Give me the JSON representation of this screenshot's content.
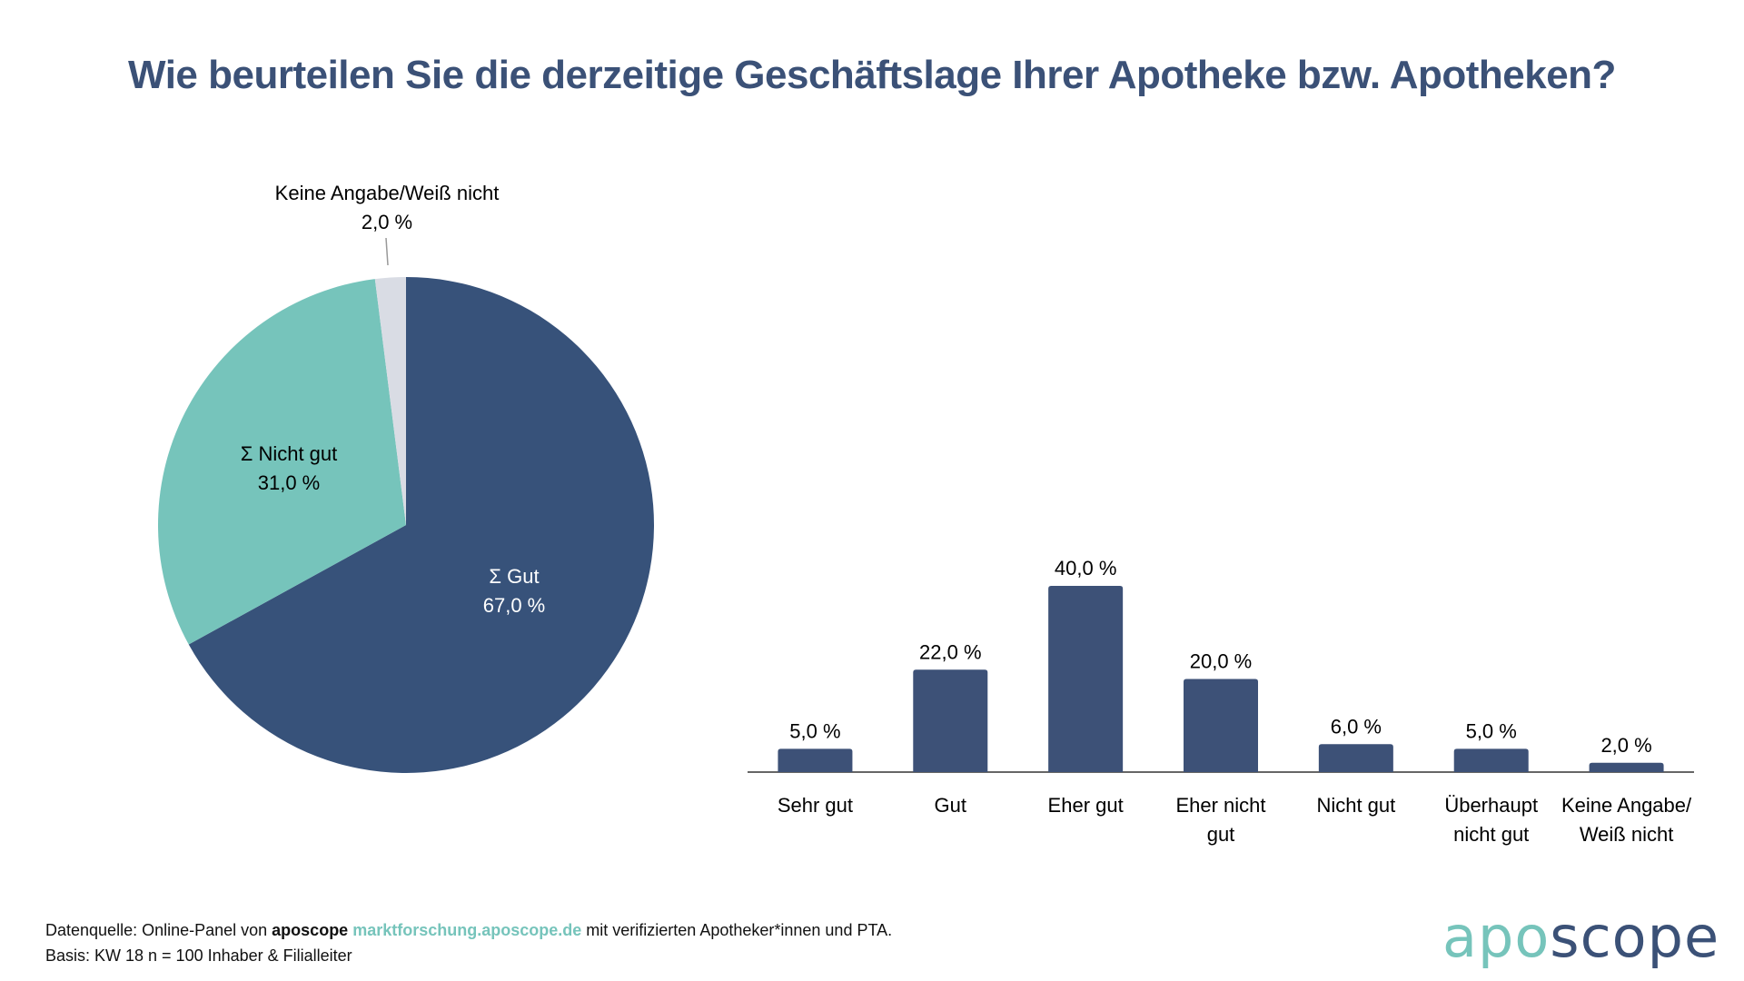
{
  "title": "Wie beurteilen Sie die derzeitige Geschäftslage Ihrer Apotheke bzw. Apotheken?",
  "colors": {
    "title": "#3b5177",
    "pie_gut": "#37527a",
    "pie_nicht_gut": "#76c4bb",
    "pie_keine_angabe": "#d9dce4",
    "bar": "#3d5177",
    "axis": "#666666",
    "logo_apo": "#76c4bb",
    "logo_scope": "#3b5177"
  },
  "chart_data": [
    {
      "type": "pie",
      "title": "",
      "slices": [
        {
          "label": "Σ Gut",
          "value": 67.0,
          "display": "67,0 %"
        },
        {
          "label": "Σ Nicht gut",
          "value": 31.0,
          "display": "31,0 %"
        },
        {
          "label": "Keine Angabe/Weiß nicht",
          "value": 2.0,
          "display": "2,0 %"
        }
      ],
      "start_angle": "12 o'clock, clockwise",
      "legend": "none (inline labels)"
    },
    {
      "type": "bar",
      "title": "",
      "categories": [
        "Sehr gut",
        "Gut",
        "Eher gut",
        "Eher nicht gut",
        "Nicht gut",
        "Überhaupt nicht gut",
        "Keine Angabe/ Weiß nicht"
      ],
      "category_lines": [
        [
          "Sehr gut"
        ],
        [
          "Gut"
        ],
        [
          "Eher gut"
        ],
        [
          "Eher nicht",
          "gut"
        ],
        [
          "Nicht gut"
        ],
        [
          "Überhaupt",
          "nicht gut"
        ],
        [
          "Keine Angabe/",
          "Weiß nicht"
        ]
      ],
      "values": [
        5.0,
        22.0,
        40.0,
        20.0,
        6.0,
        5.0,
        2.0
      ],
      "value_labels": [
        "5,0 %",
        "22,0 %",
        "40,0 %",
        "20,0 %",
        "6,0 %",
        "5,0 %",
        "2,0 %"
      ],
      "xlabel": "",
      "ylabel": "",
      "ylim": [
        0,
        40
      ],
      "grid": false,
      "legend": "none"
    }
  ],
  "footer": {
    "source_prefix": "Datenquelle: Online-Panel von ",
    "source_brand": "aposcope",
    "source_link": "marktforschung.aposcope.de",
    "source_suffix": " mit verifizierten Apotheker*innen und PTA.",
    "basis": "Basis: KW 18 n = 100 Inhaber & Filialleiter"
  },
  "logo": {
    "part1": "apo",
    "part2": "scope"
  }
}
